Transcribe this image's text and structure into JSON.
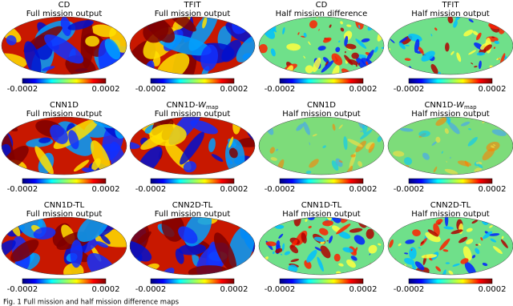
{
  "panels": [
    {
      "title": "CD",
      "subtitle": "Full mission output",
      "cbar_min": "-0.0002",
      "cbar_max": "0.0002"
    },
    {
      "title": "TFIT",
      "subtitle": "Full mission output",
      "cbar_min": "-0.0002",
      "cbar_max": "0.0002"
    },
    {
      "title": "CD",
      "subtitle": "Half mission difference",
      "cbar_min": "-0.0002",
      "cbar_max": "0.0002"
    },
    {
      "title": "TFIT",
      "subtitle": "Half mission output",
      "cbar_min": "-0.0002",
      "cbar_max": "0.0002"
    },
    {
      "title": "CNN1D",
      "subtitle": "Full mission output",
      "cbar_min": "-0.0002",
      "cbar_max": "0.0002"
    },
    {
      "title": "CNN1D-",
      "title_symbol": "W",
      "title_subscript": "map",
      "subtitle": "Full mission output",
      "cbar_min": "-0.0002",
      "cbar_max": "0.0002"
    },
    {
      "title": "CNN1D",
      "subtitle": "Half mission output",
      "cbar_min": "-0.0002",
      "cbar_max": "0.0002"
    },
    {
      "title": "CNN1D-",
      "title_symbol": "W",
      "title_subscript": "map",
      "subtitle": "Half mission output",
      "cbar_min": "-0.0002",
      "cbar_max": "0.0002"
    },
    {
      "title": "CNN1D-TL",
      "subtitle": "Full mission output",
      "cbar_min": "-0.0002",
      "cbar_max": "0.0002"
    },
    {
      "title": "CNN2D-TL",
      "subtitle": "Full mission output",
      "cbar_min": "-0.0002",
      "cbar_max": "0.0002"
    },
    {
      "title": "CNN1D-TL",
      "subtitle": "Half mission output",
      "cbar_min": "-0.0002",
      "cbar_max": "0.0002"
    },
    {
      "title": "CNN2D-TL",
      "subtitle": "Half mission output",
      "cbar_min": "-0.0002",
      "cbar_max": "0.0002"
    }
  ],
  "caption": "Fig. 1 Full mission and half mission difference maps"
}
